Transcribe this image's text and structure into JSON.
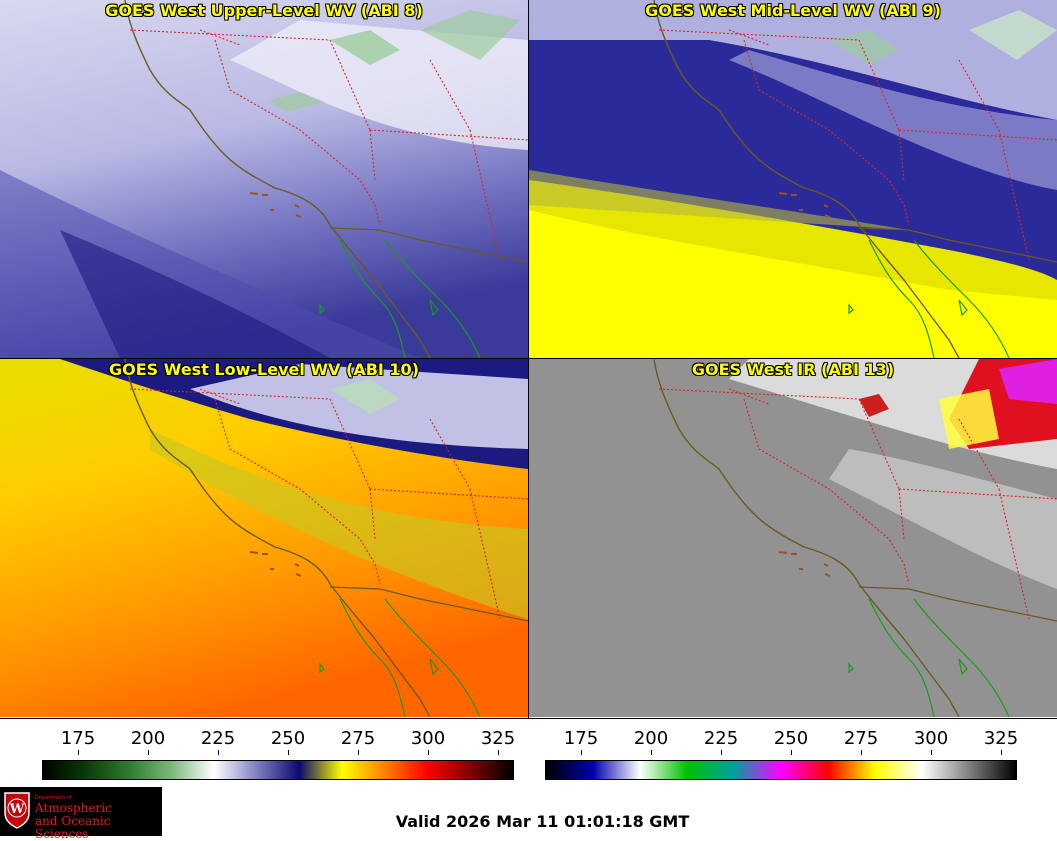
{
  "panels": [
    {
      "title": "GOES West Upper-Level WV (ABI 8)",
      "theme": "upper"
    },
    {
      "title": "GOES West Mid-Level WV (ABI 9)",
      "theme": "mid"
    },
    {
      "title": "GOES West Low-Level WV (ABI 10)",
      "theme": "low"
    },
    {
      "title": "GOES West IR (ABI 13)",
      "theme": "ir"
    }
  ],
  "colorbars": [
    {
      "ticks": [
        "175",
        "200",
        "225",
        "250",
        "275",
        "300",
        "325"
      ],
      "scale": "water-vapor",
      "colors": [
        "#000000",
        "#0b3a0b",
        "#2f7a2f",
        "#7bb87b",
        "#ffffff",
        "#8080c0",
        "#0a0a70",
        "#ffff00",
        "#ff8000",
        "#ff0000",
        "#800000",
        "#000000"
      ]
    },
    {
      "ticks": [
        "175",
        "200",
        "225",
        "250",
        "275",
        "300",
        "325"
      ],
      "scale": "infrared",
      "colors": [
        "#000000",
        "#0000aa",
        "#ffffff",
        "#00c000",
        "#00a0a0",
        "#ff00ff",
        "#ff0000",
        "#ffff00",
        "#ffffff",
        "#808080",
        "#000000"
      ]
    }
  ],
  "logo": {
    "dept": "Department of",
    "line1": "Atmospheric",
    "line2": "and Oceanic Sciences",
    "shield_letter": "W"
  },
  "valid_time": "Valid 2026 Mar 11 01:01:18 GMT",
  "colors": {
    "coast": "#6b5a1e",
    "border": "#dd2222",
    "mexico": "#1a9a1a",
    "title": "#ffff00"
  }
}
